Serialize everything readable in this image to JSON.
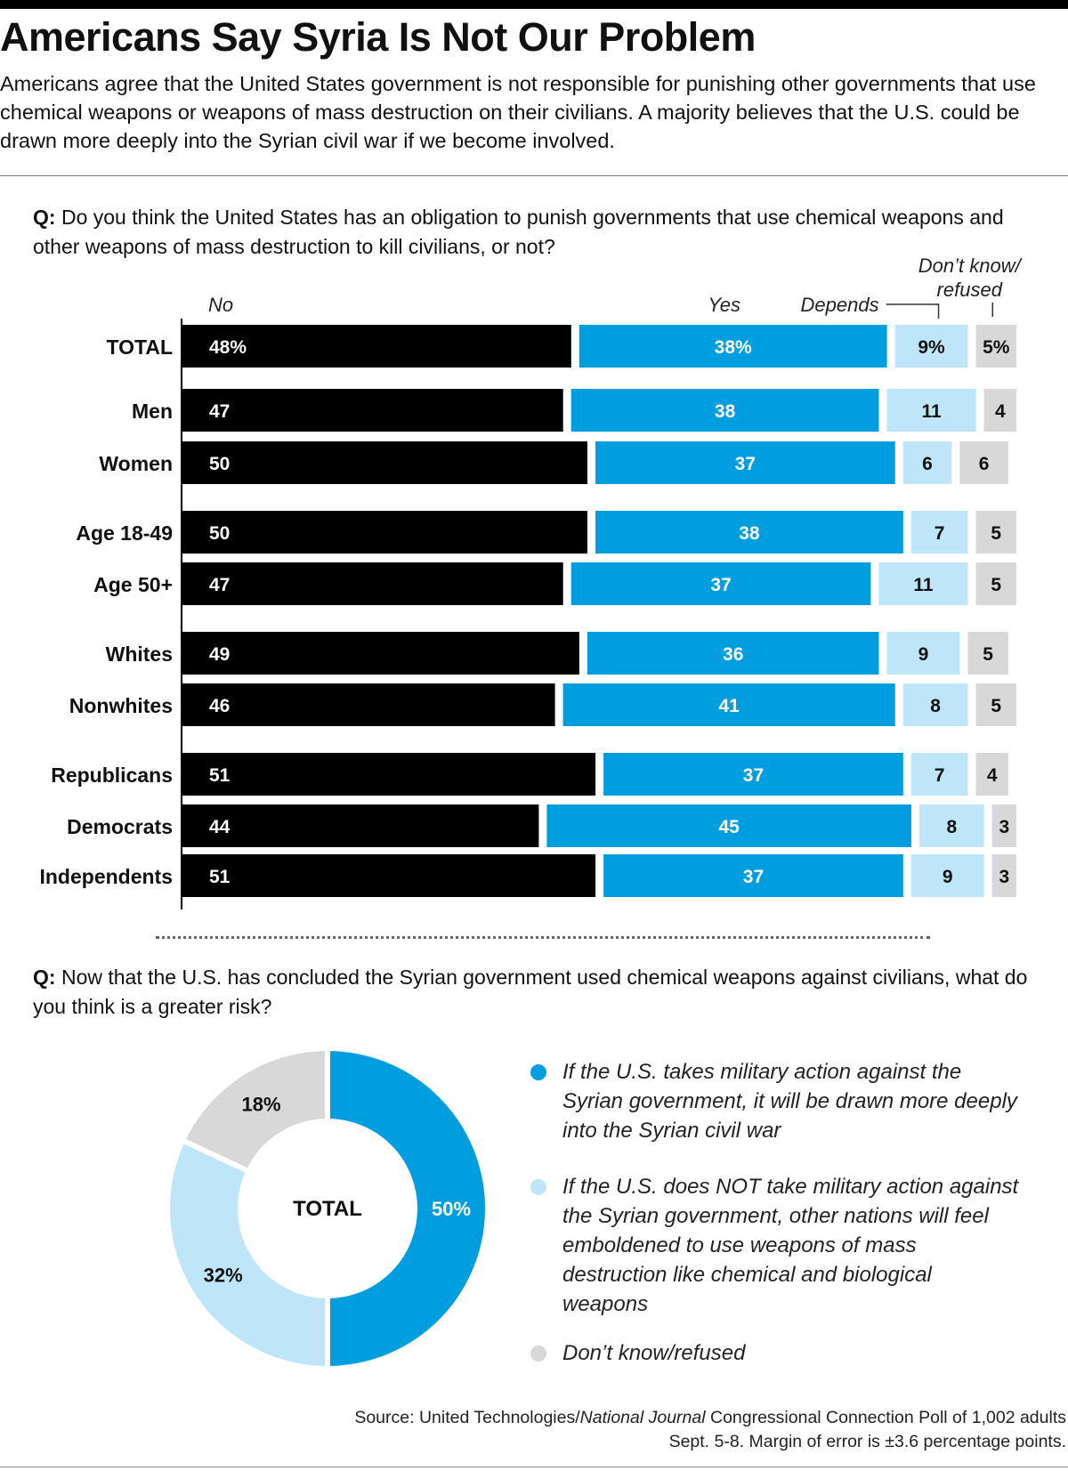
{
  "title": "Americans Say Syria Is Not Our Problem",
  "subtitle": "Americans agree that the United States government is not responsible for punishing other governments that use chemical weapons or weapons of mass destruction on their civilians. A majority believes that the U.S. could be drawn more deeply into the Syrian civil war if we become involved.",
  "question1": {
    "prefix": "Q:",
    "text": "Do you think the United States has an obligation to punish governments that use chemical weapons and other weapons of mass destruction to kill civilians, or not?"
  },
  "question2": {
    "prefix": "Q:",
    "text": "Now that the U.S. has concluded the Syrian government used chemical weapons against civilians, what do you think is a greater risk?"
  },
  "legend": [
    {
      "label": "If the U.S. takes military action against the Syrian government, it will be drawn more deeply into the Syrian civil war",
      "color": "#009EDF"
    },
    {
      "label": "If the U.S. does NOT take military action against the Syrian government, other nations will feel emboldened to use weapons of mass destruction like chemical and biological weapons",
      "color": "#BFE6F8"
    },
    {
      "label": "Don’t know/refused",
      "color": "#D8D8D8"
    }
  ],
  "source": {
    "prefix": "Source: United Technologies/",
    "publication": "National Journal",
    "suffix": " Congressional Connection Poll of 1,002 adults Sept. 5-8. Margin of error is ±3.6 percentage points."
  },
  "colors": {
    "no": "#000000",
    "yes": "#009EDF",
    "depends": "#BFE6F8",
    "dk": "#D8D8D8"
  },
  "chart_data": [
    {
      "type": "bar",
      "stacked": true,
      "orientation": "horizontal",
      "series_labels": [
        "No",
        "Yes",
        "Depends",
        "Don’t know/ refused"
      ],
      "categories": [
        "TOTAL",
        "Men",
        "Women",
        "Age 18-49",
        "Age 50+",
        "Whites",
        "Nonwhites",
        "Republicans",
        "Democrats",
        "Independents"
      ],
      "groups": [
        [
          "TOTAL"
        ],
        [
          "Men",
          "Women"
        ],
        [
          "Age 18-49",
          "Age 50+"
        ],
        [
          "Whites",
          "Nonwhites"
        ],
        [
          "Republicans",
          "Democrats",
          "Independents"
        ]
      ],
      "series": [
        {
          "name": "No",
          "values": [
            48,
            47,
            50,
            50,
            47,
            49,
            46,
            51,
            44,
            51
          ]
        },
        {
          "name": "Yes",
          "values": [
            38,
            38,
            37,
            38,
            37,
            36,
            41,
            37,
            45,
            37
          ]
        },
        {
          "name": "Depends",
          "values": [
            9,
            11,
            6,
            7,
            11,
            9,
            8,
            7,
            8,
            9
          ]
        },
        {
          "name": "Don’t know/ refused",
          "values": [
            5,
            4,
            6,
            5,
            5,
            5,
            5,
            4,
            3,
            3
          ]
        }
      ],
      "total_label_suffix": "%"
    },
    {
      "type": "pie",
      "donut": true,
      "center_label": "TOTAL",
      "slices": [
        {
          "label": "If the U.S. takes military action against the Syrian government, it will be drawn more deeply into the Syrian civil war",
          "value": 50,
          "display": "50%"
        },
        {
          "label": "If the U.S. does NOT take military action against the Syrian government, other nations will feel emboldened to use weapons of mass destruction like chemical and biological weapons",
          "value": 32,
          "display": "32%"
        },
        {
          "label": "Don’t know/refused",
          "value": 18,
          "display": "18%"
        }
      ]
    }
  ]
}
